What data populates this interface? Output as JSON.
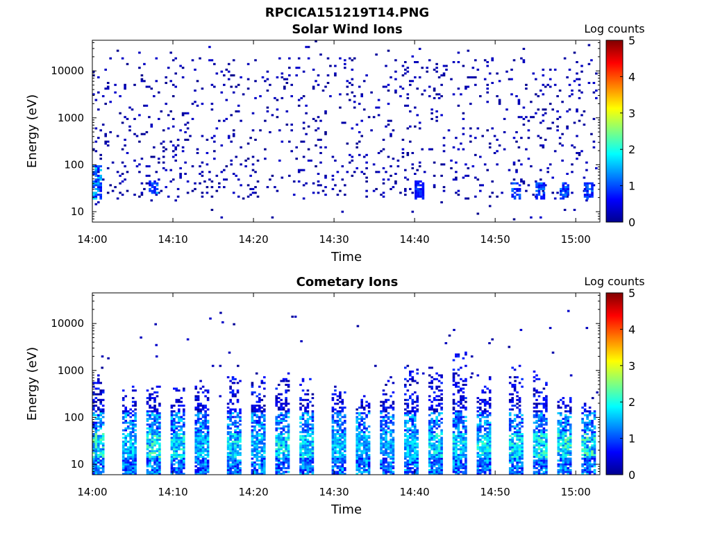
{
  "figure_title": "RPCICA151219T14.PNG",
  "chart_data": [
    {
      "type": "heatmap",
      "title": "Solar Wind Ions",
      "xlabel": "Time",
      "ylabel": "Energy (eV)",
      "x_ticks": [
        "14:00",
        "14:10",
        "14:20",
        "14:30",
        "14:40",
        "14:50",
        "15:00"
      ],
      "x_range": [
        "14:00",
        "15:03"
      ],
      "y_scale": "log",
      "y_ticks": [
        10,
        100,
        1000,
        10000
      ],
      "y_tick_labels": [
        "10",
        "100",
        "1000",
        "10000"
      ],
      "y_range": [
        6,
        45000
      ],
      "colorbar": {
        "label": "Log counts",
        "range": [
          0,
          5
        ],
        "ticks": [
          "0",
          "1",
          "2",
          "3",
          "4",
          "5"
        ],
        "colormap": "jet"
      },
      "background_counts": "sparse single counts (log ~0) scattered from ~20 eV to ~20000 eV throughout the hour",
      "enhancements": [
        {
          "time": "14:00",
          "energy_ev": [
            20,
            90
          ],
          "log_counts": [
            0.5,
            1.8
          ]
        },
        {
          "time": "14:07",
          "energy_ev": [
            25,
            45
          ],
          "log_counts": [
            0.5,
            1.5
          ]
        },
        {
          "time": "14:40",
          "energy_ev": [
            20,
            45
          ],
          "log_counts": [
            0.5,
            1.0
          ]
        },
        {
          "time": "14:52",
          "energy_ev": [
            20,
            40
          ],
          "log_counts": [
            0.5,
            1.3
          ]
        },
        {
          "time": "14:55",
          "energy_ev": [
            20,
            40
          ],
          "log_counts": [
            0.5,
            1.3
          ]
        },
        {
          "time": "14:58",
          "energy_ev": [
            20,
            40
          ],
          "log_counts": [
            0.5,
            1.3
          ]
        },
        {
          "time": "15:01",
          "energy_ev": [
            20,
            40
          ],
          "log_counts": [
            0.5,
            1.3
          ]
        }
      ]
    },
    {
      "type": "heatmap",
      "title": "Cometary Ions",
      "xlabel": "Time",
      "ylabel": "Energy (eV)",
      "x_ticks": [
        "14:00",
        "14:10",
        "14:20",
        "14:30",
        "14:40",
        "14:50",
        "15:00"
      ],
      "x_range": [
        "14:00",
        "15:03"
      ],
      "y_scale": "log",
      "y_ticks": [
        10,
        100,
        1000,
        10000
      ],
      "y_tick_labels": [
        "10",
        "100",
        "1000",
        "10000"
      ],
      "y_range": [
        6,
        45000
      ],
      "colorbar": {
        "label": "Log counts",
        "range": [
          0,
          5
        ],
        "ticks": [
          "0",
          "1",
          "2",
          "3",
          "4",
          "5"
        ],
        "colormap": "jet"
      },
      "bursts": [
        {
          "time": "14:00",
          "energy_max_ev": 1000,
          "peak_log_counts": 2.5
        },
        {
          "time": "14:04",
          "energy_max_ev": 500,
          "peak_log_counts": 2.0
        },
        {
          "time": "14:07",
          "energy_max_ev": 500,
          "peak_log_counts": 2.6
        },
        {
          "time": "14:10",
          "energy_max_ev": 500,
          "peak_log_counts": 2.3
        },
        {
          "time": "14:13",
          "energy_max_ev": 600,
          "peak_log_counts": 2.0
        },
        {
          "time": "14:17",
          "energy_max_ev": 800,
          "peak_log_counts": 2.2
        },
        {
          "time": "14:20",
          "energy_max_ev": 900,
          "peak_log_counts": 2.0
        },
        {
          "time": "14:23",
          "energy_max_ev": 900,
          "peak_log_counts": 2.3
        },
        {
          "time": "14:26",
          "energy_max_ev": 700,
          "peak_log_counts": 2.2
        },
        {
          "time": "14:30",
          "energy_max_ev": 500,
          "peak_log_counts": 2.0
        },
        {
          "time": "14:33",
          "energy_max_ev": 300,
          "peak_log_counts": 1.8
        },
        {
          "time": "14:36",
          "energy_max_ev": 900,
          "peak_log_counts": 1.8
        },
        {
          "time": "14:39",
          "energy_max_ev": 1300,
          "peak_log_counts": 2.0
        },
        {
          "time": "14:42",
          "energy_max_ev": 1300,
          "peak_log_counts": 2.2
        },
        {
          "time": "14:45",
          "energy_max_ev": 2500,
          "peak_log_counts": 2.2
        },
        {
          "time": "14:48",
          "energy_max_ev": 800,
          "peak_log_counts": 2.3
        },
        {
          "time": "14:52",
          "energy_max_ev": 1300,
          "peak_log_counts": 2.3
        },
        {
          "time": "14:55",
          "energy_max_ev": 1000,
          "peak_log_counts": 2.4
        },
        {
          "time": "14:58",
          "energy_max_ev": 300,
          "peak_log_counts": 2.5
        },
        {
          "time": "15:01",
          "energy_max_ev": 200,
          "peak_log_counts": 2.5
        }
      ]
    }
  ]
}
